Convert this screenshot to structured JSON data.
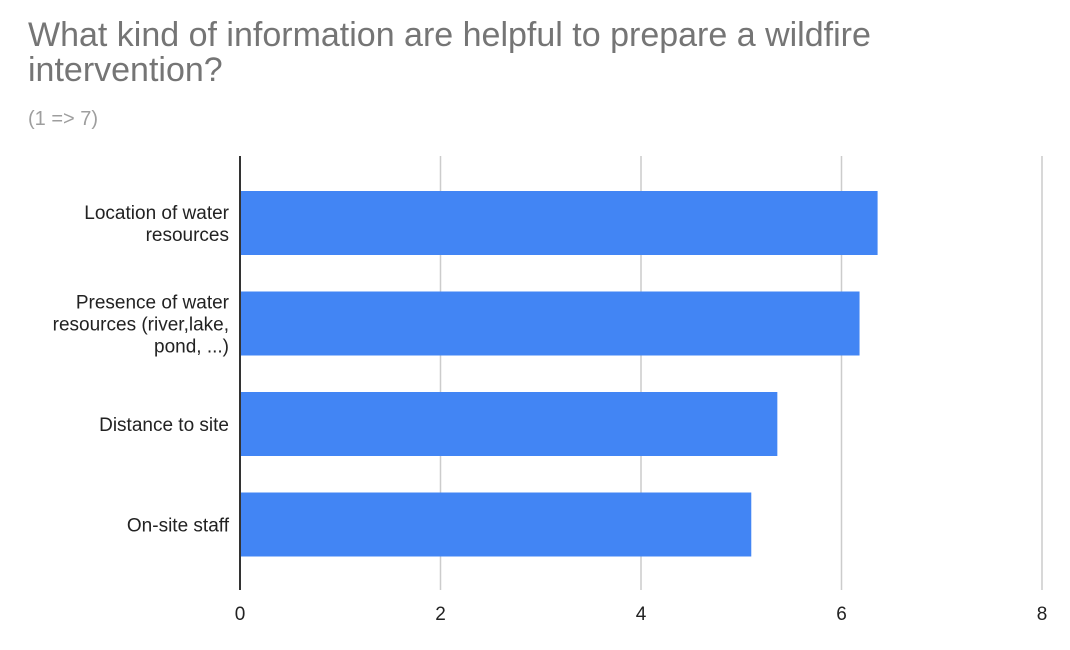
{
  "chart_data": {
    "type": "bar",
    "orientation": "horizontal",
    "title": "What kind of information are helpful to prepare a wildfire intervention?",
    "subtitle": "(1 => 7)",
    "categories": [
      [
        "Location of water",
        "resources"
      ],
      [
        "Presence of water",
        "resources (river,lake,",
        "pond, ...)"
      ],
      [
        "Distance to site"
      ],
      [
        "On-site staff"
      ]
    ],
    "values": [
      6.36,
      6.18,
      5.36,
      5.1
    ],
    "xlim": [
      0,
      8
    ],
    "xticks": [
      0,
      2,
      4,
      6,
      8
    ],
    "xlabel": "",
    "ylabel": "",
    "grid": true,
    "colors": {
      "bar": "#4285f4",
      "grid": "#cccccc",
      "axis": "#333333"
    }
  }
}
